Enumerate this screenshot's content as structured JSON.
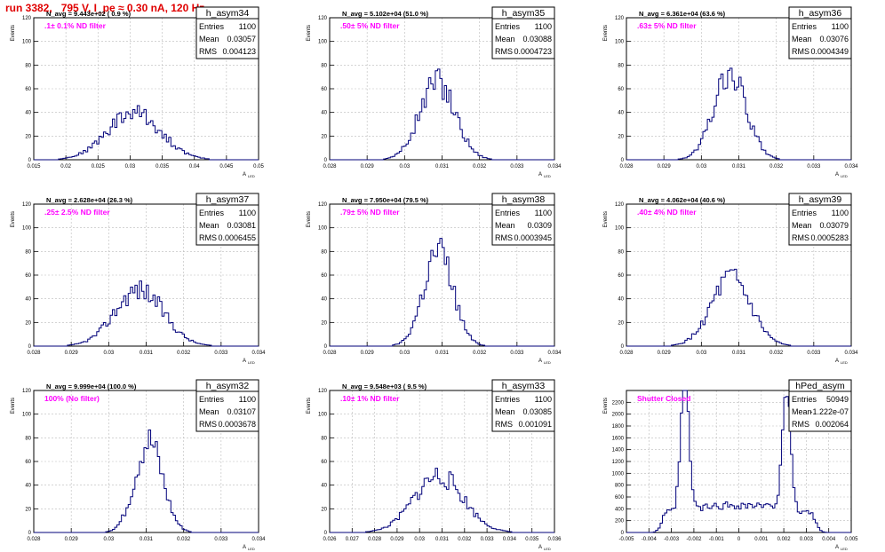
{
  "page_title": "run 3382,   795 V, I_pe ≈ 0.30 nA, 120 Hz",
  "colors": {
    "hist": "#00007a",
    "title": "#e00000",
    "note": "#ff00ff",
    "grid": "#bbbbbb"
  },
  "common": {
    "ylabel": "Events",
    "xlabel": "A",
    "xlabel_sub": "LED"
  },
  "chart_data": [
    {
      "type": "bar",
      "id": "h_asym34",
      "stats_title": "h_asym34",
      "stats": [
        {
          "label": "Entries",
          "value": "1100"
        },
        {
          "label": "Mean",
          "value": "0.03057"
        },
        {
          "label": "RMS",
          "value": "0.004123"
        }
      ],
      "navg": "N_avg = 9.443e+02 ( 0.9 %)",
      "note": ".1± 0.1% ND filter",
      "xlim": [
        0.015,
        0.05
      ],
      "ylim": [
        0,
        120
      ],
      "xticks": [
        0.015,
        0.02,
        0.025,
        0.03,
        0.035,
        0.04,
        0.045,
        0.05
      ],
      "xtick_labels": [
        "0.015",
        "0.02",
        "0.025",
        "0.03",
        "0.035",
        "0.04",
        "0.045",
        "0.05"
      ],
      "yticks": [
        0,
        20,
        40,
        60,
        80,
        100,
        120
      ],
      "mean": 0.03057,
      "sigma": 0.004123,
      "peak": 40,
      "bins": 100,
      "seed": 34
    },
    {
      "type": "bar",
      "id": "h_asym35",
      "stats_title": "h_asym35",
      "stats": [
        {
          "label": "Entries",
          "value": "1100"
        },
        {
          "label": "Mean",
          "value": "0.03088"
        },
        {
          "label": "RMS",
          "value": "0.0004723"
        }
      ],
      "navg": "N_avg = 5.102e+04 (51.0 %)",
      "note": ".50± 5% ND filter",
      "xlim": [
        0.028,
        0.034
      ],
      "ylim": [
        0,
        120
      ],
      "xticks": [
        0.028,
        0.029,
        0.03,
        0.031,
        0.032,
        0.033,
        0.034
      ],
      "xtick_labels": [
        "0.028",
        "0.029",
        "0.03",
        "0.031",
        "0.032",
        "0.033",
        "0.034"
      ],
      "yticks": [
        0,
        20,
        40,
        60,
        80,
        100,
        120
      ],
      "mean": 0.03088,
      "sigma": 0.0004723,
      "peak": 66,
      "bins": 100,
      "seed": 35
    },
    {
      "type": "bar",
      "id": "h_asym36",
      "stats_title": "h_asym36",
      "stats": [
        {
          "label": "Entries",
          "value": "1100"
        },
        {
          "label": "Mean",
          "value": "0.03076"
        },
        {
          "label": "RMS",
          "value": "0.0004349"
        }
      ],
      "navg": "N_avg = 6.361e+04 (63.6 %)",
      "note": ".63± 5% ND filter",
      "xlim": [
        0.028,
        0.034
      ],
      "ylim": [
        0,
        120
      ],
      "xticks": [
        0.028,
        0.029,
        0.03,
        0.031,
        0.032,
        0.033,
        0.034
      ],
      "xtick_labels": [
        "0.028",
        "0.029",
        "0.03",
        "0.031",
        "0.032",
        "0.033",
        "0.034"
      ],
      "yticks": [
        0,
        20,
        40,
        60,
        80,
        100,
        120
      ],
      "mean": 0.03076,
      "sigma": 0.0004349,
      "peak": 72,
      "bins": 100,
      "seed": 36
    },
    {
      "type": "bar",
      "id": "h_asym37",
      "stats_title": "h_asym37",
      "stats": [
        {
          "label": "Entries",
          "value": "1100"
        },
        {
          "label": "Mean",
          "value": "0.03081"
        },
        {
          "label": "RMS",
          "value": "0.0006455"
        }
      ],
      "navg": "N_avg = 2.628e+04 (26.3 %)",
      "note": ".25± 2.5% ND filter",
      "xlim": [
        0.028,
        0.034
      ],
      "ylim": [
        0,
        120
      ],
      "xticks": [
        0.028,
        0.029,
        0.03,
        0.031,
        0.032,
        0.033,
        0.034
      ],
      "xtick_labels": [
        "0.028",
        "0.029",
        "0.03",
        "0.031",
        "0.032",
        "0.033",
        "0.034"
      ],
      "yticks": [
        0,
        20,
        40,
        60,
        80,
        100,
        120
      ],
      "mean": 0.03081,
      "sigma": 0.0006455,
      "peak": 48,
      "bins": 100,
      "seed": 37
    },
    {
      "type": "bar",
      "id": "h_asym38",
      "stats_title": "h_asym38",
      "stats": [
        {
          "label": "Entries",
          "value": "1100"
        },
        {
          "label": "Mean",
          "value": "0.0309"
        },
        {
          "label": "RMS",
          "value": "0.0003945"
        }
      ],
      "navg": "N_avg = 7.950e+04 (79.5 %)",
      "note": ".79± 5% ND filter",
      "xlim": [
        0.028,
        0.034
      ],
      "ylim": [
        0,
        120
      ],
      "xticks": [
        0.028,
        0.029,
        0.03,
        0.031,
        0.032,
        0.033,
        0.034
      ],
      "xtick_labels": [
        "0.028",
        "0.029",
        "0.03",
        "0.031",
        "0.032",
        "0.033",
        "0.034"
      ],
      "yticks": [
        0,
        20,
        40,
        60,
        80,
        100,
        120
      ],
      "mean": 0.0309,
      "sigma": 0.0003945,
      "peak": 80,
      "bins": 100,
      "seed": 38
    },
    {
      "type": "bar",
      "id": "h_asym39",
      "stats_title": "h_asym39",
      "stats": [
        {
          "label": "Entries",
          "value": "1100"
        },
        {
          "label": "Mean",
          "value": "0.03079"
        },
        {
          "label": "RMS",
          "value": "0.0005283"
        }
      ],
      "navg": "N_avg = 4.062e+04 (40.6 %)",
      "note": ".40± 4% ND filter",
      "xlim": [
        0.028,
        0.034
      ],
      "ylim": [
        0,
        120
      ],
      "xticks": [
        0.028,
        0.029,
        0.03,
        0.031,
        0.032,
        0.033,
        0.034
      ],
      "xtick_labels": [
        "0.028",
        "0.029",
        "0.03",
        "0.031",
        "0.032",
        "0.033",
        "0.034"
      ],
      "yticks": [
        0,
        20,
        40,
        60,
        80,
        100,
        120
      ],
      "mean": 0.03079,
      "sigma": 0.0005283,
      "peak": 56,
      "bins": 100,
      "seed": 39
    },
    {
      "type": "bar",
      "id": "h_asym32",
      "stats_title": "h_asym32",
      "stats": [
        {
          "label": "Entries",
          "value": "1100"
        },
        {
          "label": "Mean",
          "value": "0.03107"
        },
        {
          "label": "RMS",
          "value": "0.0003678"
        }
      ],
      "navg": "N_avg = 9.999e+04 (100.0 %)",
      "note": "100% (No filter)",
      "xlim": [
        0.028,
        0.034
      ],
      "ylim": [
        0,
        120
      ],
      "xticks": [
        0.028,
        0.029,
        0.03,
        0.031,
        0.032,
        0.033,
        0.034
      ],
      "xtick_labels": [
        "0.028",
        "0.029",
        "0.03",
        "0.031",
        "0.032",
        "0.033",
        "0.034"
      ],
      "yticks": [
        0,
        20,
        40,
        60,
        80,
        100,
        120
      ],
      "mean": 0.03107,
      "sigma": 0.0003678,
      "peak": 77,
      "bins": 100,
      "seed": 32
    },
    {
      "type": "bar",
      "id": "h_asym33",
      "stats_title": "h_asym33",
      "stats": [
        {
          "label": "Entries",
          "value": "1100"
        },
        {
          "label": "Mean",
          "value": "0.03085"
        },
        {
          "label": "RMS",
          "value": "0.001091"
        }
      ],
      "navg": "N_avg = 9.548e+03 ( 9.5 %)",
      "note": ".10± 1% ND filter",
      "xlim": [
        0.026,
        0.036
      ],
      "ylim": [
        0,
        120
      ],
      "xticks": [
        0.026,
        0.027,
        0.028,
        0.029,
        0.03,
        0.031,
        0.032,
        0.033,
        0.034,
        0.035,
        0.036
      ],
      "xtick_labels": [
        "0.026",
        "0.027",
        "0.028",
        "0.029",
        "0.03",
        "0.031",
        "0.032",
        "0.033",
        "0.034",
        "0.035",
        "0.036"
      ],
      "yticks": [
        0,
        20,
        40,
        60,
        80,
        100,
        120
      ],
      "mean": 0.03085,
      "sigma": 0.001091,
      "peak": 48,
      "bins": 100,
      "seed": 33
    },
    {
      "type": "bar",
      "id": "hPed_asym",
      "stats_title": "hPed_asym",
      "stats": [
        {
          "label": "Entries",
          "value": "50949"
        },
        {
          "label": "Mean",
          "value": "-1.222e-07"
        },
        {
          "label": "RMS",
          "value": "0.002064"
        }
      ],
      "navg": "",
      "note": "Shutter Closed",
      "xlim": [
        -0.005,
        0.005
      ],
      "ylim": [
        0,
        2400
      ],
      "xticks": [
        -0.005,
        -0.004,
        -0.003,
        -0.002,
        -0.001,
        0,
        0.001,
        0.002,
        0.003,
        0.004,
        0.005
      ],
      "xtick_labels": [
        "-0.005",
        "-0.004",
        "-0.003",
        "-0.002",
        "-0.001",
        "0",
        "0.001",
        "0.002",
        "0.003",
        "0.004",
        "0.005"
      ],
      "yticks": [
        0,
        200,
        400,
        600,
        800,
        1000,
        1200,
        1400,
        1600,
        1800,
        2000,
        2200
      ],
      "bimodal": true,
      "peaks": [
        {
          "center": -0.0024,
          "width": 0.00018,
          "height": 2200
        },
        {
          "center": 0.0021,
          "width": 0.00018,
          "height": 2100
        }
      ],
      "baseline": 420,
      "bins": 100,
      "seed": 99
    }
  ]
}
